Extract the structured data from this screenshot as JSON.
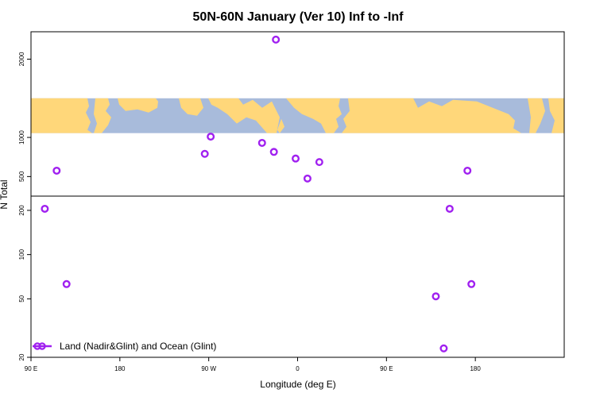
{
  "chart_data": {
    "type": "scatter",
    "title": "50N-60N January (Ver 10)   Inf to -Inf",
    "xlabel": "Longitude (deg E)",
    "ylabel": "N Total",
    "xlim": [
      -90,
      180
    ],
    "x_ticks": [
      {
        "value": -90,
        "label": "90 E"
      },
      {
        "value": -45,
        "label": "180"
      },
      {
        "value": 0,
        "label": "90 W"
      },
      {
        "value": 45,
        "label": "0"
      },
      {
        "value": 90,
        "label": "90 E"
      },
      {
        "value": 135,
        "label": "180"
      }
    ],
    "panels": [
      {
        "name": "upper",
        "scale": "linear",
        "ylim": [
          250,
          2350
        ],
        "y_ticks": [
          {
            "value": 500,
            "label": "500"
          },
          {
            "value": 1000,
            "label": "1000"
          },
          {
            "value": 2000,
            "label": "2000"
          }
        ],
        "map_band": {
          "ymin": 1055,
          "ymax": 1500
        }
      },
      {
        "name": "lower",
        "scale": "log",
        "ylim": [
          20,
          250
        ],
        "y_ticks": [
          {
            "value": 20,
            "label": "20"
          },
          {
            "value": 50,
            "label": "50"
          },
          {
            "value": 100,
            "label": "100"
          },
          {
            "value": 200,
            "label": "200"
          }
        ]
      }
    ],
    "series": [
      {
        "name": "Land (Nadir&Glint) and Ocean (Glint)",
        "color": "#a020f0",
        "marker": "open-circle",
        "points": [
          {
            "x": 34,
            "y": 2250
          },
          {
            "x": -77,
            "y": 575
          },
          {
            "x": -2,
            "y": 790
          },
          {
            "x": 1,
            "y": 1010
          },
          {
            "x": 27,
            "y": 930
          },
          {
            "x": 33,
            "y": 815
          },
          {
            "x": 44,
            "y": 730
          },
          {
            "x": 50,
            "y": 475
          },
          {
            "x": 56,
            "y": 685
          },
          {
            "x": 131,
            "y": 575
          },
          {
            "x": -83,
            "y": 205
          },
          {
            "x": -72,
            "y": 63
          },
          {
            "x": 115,
            "y": 52
          },
          {
            "x": 122,
            "y": 205
          },
          {
            "x": 133,
            "y": 63
          },
          {
            "x": 119,
            "y": 23
          }
        ]
      }
    ],
    "legend": {
      "position": "bottom-left",
      "label": "Land (Nadir&Glint) and Ocean (Glint)"
    }
  },
  "colors": {
    "map_land": "#ffd77a",
    "map_ocean": "#a8bbdb",
    "marker": "#a020f0"
  }
}
